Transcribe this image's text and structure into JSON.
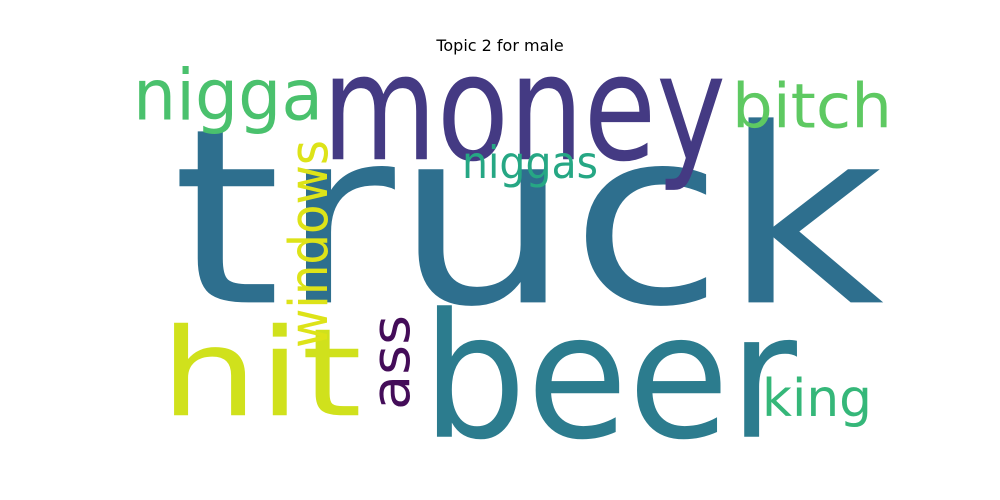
{
  "figure": {
    "title": "Topic 2 for male"
  },
  "words": [
    {
      "text": "truck",
      "color": "#2e6f8e",
      "rotated": false
    },
    {
      "text": "money",
      "color": "#443a83",
      "rotated": false
    },
    {
      "text": "beer",
      "color": "#2c7c8e",
      "rotated": false
    },
    {
      "text": "hit",
      "color": "#d0e11c",
      "rotated": false
    },
    {
      "text": "nigga",
      "color": "#4ac16d",
      "rotated": false
    },
    {
      "text": "bitch",
      "color": "#5ec962",
      "rotated": false
    },
    {
      "text": "niggas",
      "color": "#26a784",
      "rotated": false
    },
    {
      "text": "windows",
      "color": "#dde318",
      "rotated": true
    },
    {
      "text": "ass",
      "color": "#440d59",
      "rotated": true
    },
    {
      "text": "king",
      "color": "#35b779",
      "rotated": false
    }
  ]
}
